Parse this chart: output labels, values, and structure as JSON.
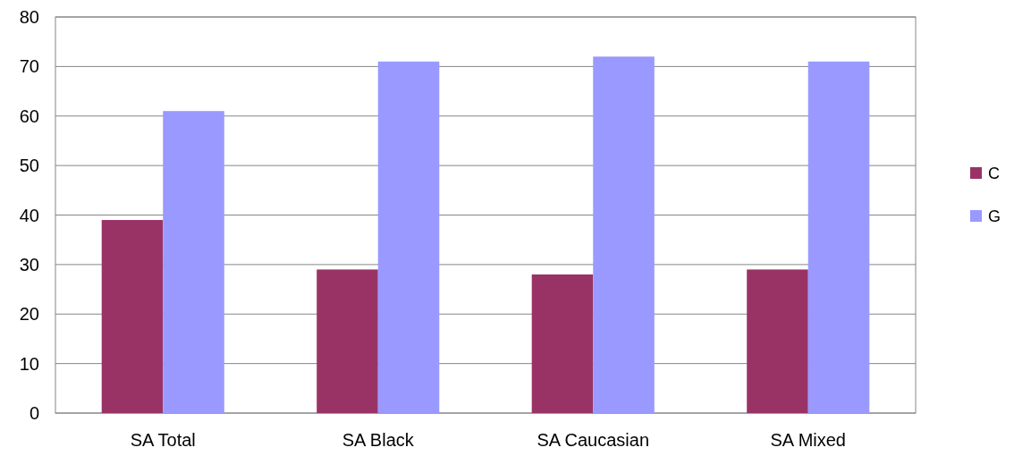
{
  "chart_data": {
    "type": "bar",
    "categories": [
      "SA Total",
      "SA Black",
      "SA Caucasian",
      "SA Mixed"
    ],
    "series": [
      {
        "name": "C",
        "color": "#993366",
        "values": [
          39,
          29,
          28,
          29
        ]
      },
      {
        "name": "G",
        "color": "#9999ff",
        "values": [
          61,
          71,
          72,
          71
        ]
      }
    ],
    "ylim": [
      0,
      80
    ],
    "yticks": [
      0,
      10,
      20,
      30,
      40,
      50,
      60,
      70,
      80
    ],
    "grid": "y",
    "legend": "right"
  }
}
